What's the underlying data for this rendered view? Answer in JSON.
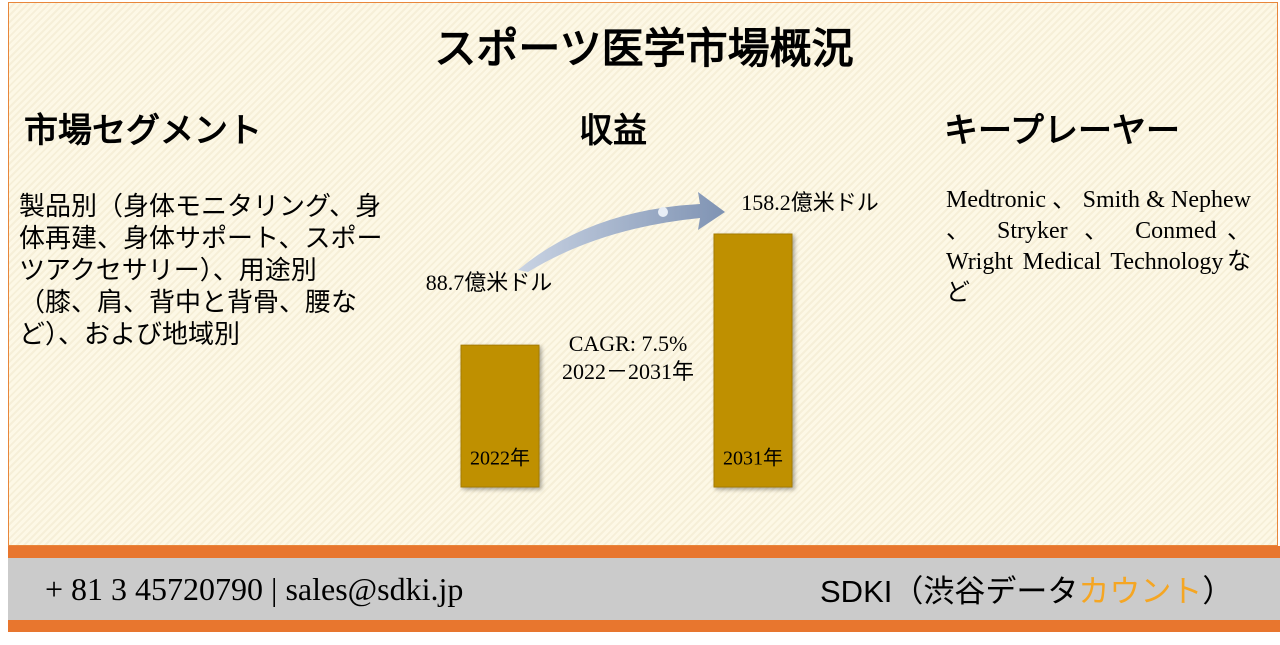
{
  "title": "スポーツ医学市場概況",
  "segments": {
    "heading": "市場セグメント",
    "text": "製品別（身体モニタリング、身体再建、身体サポート、スポーツアクセサリー）、用途別（膝、肩、背中と背骨、腰など）、および地域別"
  },
  "revenue": {
    "heading": "収益",
    "bars": [
      {
        "year": "2022年",
        "value": 88.7,
        "label": "88.7億米ドル"
      },
      {
        "year": "2031年",
        "value": 158.2,
        "label": "158.2億米ドル"
      }
    ],
    "cagr": "CAGR: 7.5%",
    "period": "2022－2031年"
  },
  "players": {
    "heading": "キープレーヤー",
    "text": "Medtronic 、 Smith & Nephew 、 Stryker 、 Conmed、Wright Medical Technologyなど"
  },
  "footer": {
    "contact": "+ 81 3 45720790 | sales@sdki.jp",
    "brand": "SDKI（渋谷データ",
    "brand_highlight": "カウント",
    "brand_end": "）"
  }
}
